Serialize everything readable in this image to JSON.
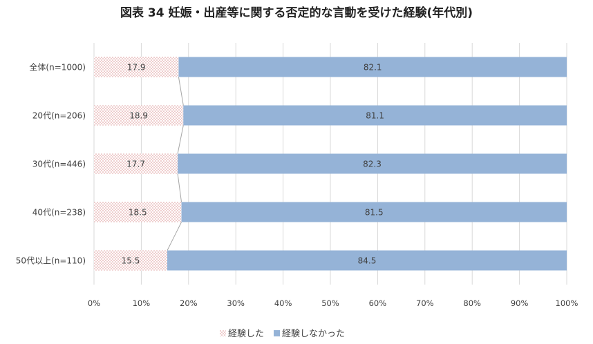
{
  "chart_data": {
    "type": "bar",
    "orientation": "horizontal",
    "stacked": "percent",
    "title": "図表 34 妊娠・出産等に関する否定的な言動を受けた経験(年代別)",
    "categories": [
      "全体(n=1000)",
      "20代(n=206)",
      "30代(n=446)",
      "40代(n=238)",
      "50代以上(n=110)"
    ],
    "series": [
      {
        "name": "経験した",
        "values": [
          17.9,
          18.9,
          17.7,
          18.5,
          15.5
        ],
        "color": "#e8a0a0",
        "pattern": "dotted"
      },
      {
        "name": "経験しなかった",
        "values": [
          82.1,
          81.1,
          82.3,
          81.5,
          84.5
        ],
        "color": "#95b3d7"
      }
    ],
    "xlim": [
      0,
      100
    ],
    "xticks": [
      "0%",
      "10%",
      "20%",
      "30%",
      "40%",
      "50%",
      "60%",
      "70%",
      "80%",
      "90%",
      "100%"
    ],
    "grid": "vertical",
    "series_lines": true,
    "legend": "bottom"
  }
}
